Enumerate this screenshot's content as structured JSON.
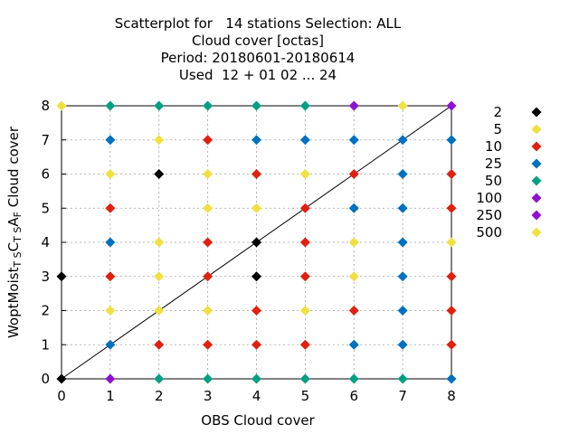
{
  "chart_data": {
    "type": "scatter",
    "title_lines": [
      "Scatterplot for   14 stations Selection: ALL",
      "Cloud cover [octas]",
      "Period: 20180601-20180614",
      "Used  12 + 01 02 ... 24"
    ],
    "xlabel": "OBS Cloud cover",
    "ylabel": {
      "parts": [
        {
          "text": "WoptMoist",
          "sub": false
        },
        {
          "text": "T S",
          "sub": true
        },
        {
          "text": "C",
          "sub": false
        },
        {
          "text": "T S",
          "sub": true
        },
        {
          "text": "A",
          "sub": false
        },
        {
          "text": "F",
          "sub": true
        },
        {
          "text": " Cloud cover",
          "sub": false
        }
      ]
    },
    "xlim": [
      0,
      8
    ],
    "ylim": [
      0,
      8
    ],
    "xticks": [
      "0",
      "1",
      "2",
      "3",
      "4",
      "5",
      "6",
      "7",
      "8"
    ],
    "yticks": [
      "0",
      "1",
      "2",
      "3",
      "4",
      "5",
      "6",
      "7",
      "8"
    ],
    "grid": true,
    "diagonal_line": true,
    "legend_position": "right",
    "legend": [
      {
        "label": "2",
        "color": "#000000"
      },
      {
        "label": "5",
        "color": "#f0e040"
      },
      {
        "label": "10",
        "color": "#e02010"
      },
      {
        "label": "25",
        "color": "#0070c0"
      },
      {
        "label": "50",
        "color": "#00a080"
      },
      {
        "label": "100",
        "color": "#9010d0"
      },
      {
        "label": "250",
        "color": "#9010d0"
      },
      {
        "label": "500",
        "color": "#f0e040"
      }
    ],
    "points": [
      {
        "x": 0,
        "y": 0,
        "color": "#000000"
      },
      {
        "x": 0,
        "y": 3,
        "color": "#000000"
      },
      {
        "x": 0,
        "y": 8,
        "color": "#f0e040"
      },
      {
        "x": 1,
        "y": 0,
        "color": "#9010d0"
      },
      {
        "x": 1,
        "y": 1,
        "color": "#0070c0"
      },
      {
        "x": 1,
        "y": 2,
        "color": "#f0e040"
      },
      {
        "x": 1,
        "y": 3,
        "color": "#e02010"
      },
      {
        "x": 1,
        "y": 4,
        "color": "#0070c0"
      },
      {
        "x": 1,
        "y": 5,
        "color": "#e02010"
      },
      {
        "x": 1,
        "y": 6,
        "color": "#f0e040"
      },
      {
        "x": 1,
        "y": 7,
        "color": "#0070c0"
      },
      {
        "x": 1,
        "y": 8,
        "color": "#00a080"
      },
      {
        "x": 2,
        "y": 0,
        "color": "#00a080"
      },
      {
        "x": 2,
        "y": 1,
        "color": "#e02010"
      },
      {
        "x": 2,
        "y": 2,
        "color": "#f0e040"
      },
      {
        "x": 2,
        "y": 3,
        "color": "#f0e040"
      },
      {
        "x": 2,
        "y": 4,
        "color": "#f0e040"
      },
      {
        "x": 2,
        "y": 6,
        "color": "#000000"
      },
      {
        "x": 2,
        "y": 7,
        "color": "#f0e040"
      },
      {
        "x": 2,
        "y": 8,
        "color": "#00a080"
      },
      {
        "x": 3,
        "y": 0,
        "color": "#00a080"
      },
      {
        "x": 3,
        "y": 1,
        "color": "#e02010"
      },
      {
        "x": 3,
        "y": 2,
        "color": "#f0e040"
      },
      {
        "x": 3,
        "y": 3,
        "color": "#e02010"
      },
      {
        "x": 3,
        "y": 4,
        "color": "#e02010"
      },
      {
        "x": 3,
        "y": 5,
        "color": "#f0e040"
      },
      {
        "x": 3,
        "y": 6,
        "color": "#f0e040"
      },
      {
        "x": 3,
        "y": 7,
        "color": "#e02010"
      },
      {
        "x": 3,
        "y": 8,
        "color": "#00a080"
      },
      {
        "x": 4,
        "y": 0,
        "color": "#00a080"
      },
      {
        "x": 4,
        "y": 1,
        "color": "#e02010"
      },
      {
        "x": 4,
        "y": 2,
        "color": "#e02010"
      },
      {
        "x": 4,
        "y": 3,
        "color": "#000000"
      },
      {
        "x": 4,
        "y": 4,
        "color": "#000000"
      },
      {
        "x": 4,
        "y": 5,
        "color": "#f0e040"
      },
      {
        "x": 4,
        "y": 6,
        "color": "#e02010"
      },
      {
        "x": 4,
        "y": 7,
        "color": "#0070c0"
      },
      {
        "x": 4,
        "y": 8,
        "color": "#00a080"
      },
      {
        "x": 5,
        "y": 0,
        "color": "#00a080"
      },
      {
        "x": 5,
        "y": 1,
        "color": "#e02010"
      },
      {
        "x": 5,
        "y": 2,
        "color": "#f0e040"
      },
      {
        "x": 5,
        "y": 3,
        "color": "#e02010"
      },
      {
        "x": 5,
        "y": 4,
        "color": "#e02010"
      },
      {
        "x": 5,
        "y": 5,
        "color": "#e02010"
      },
      {
        "x": 5,
        "y": 6,
        "color": "#f0e040"
      },
      {
        "x": 5,
        "y": 7,
        "color": "#0070c0"
      },
      {
        "x": 5,
        "y": 8,
        "color": "#00a080"
      },
      {
        "x": 6,
        "y": 0,
        "color": "#00a080"
      },
      {
        "x": 6,
        "y": 1,
        "color": "#0070c0"
      },
      {
        "x": 6,
        "y": 2,
        "color": "#e02010"
      },
      {
        "x": 6,
        "y": 3,
        "color": "#f0e040"
      },
      {
        "x": 6,
        "y": 4,
        "color": "#f0e040"
      },
      {
        "x": 6,
        "y": 5,
        "color": "#0070c0"
      },
      {
        "x": 6,
        "y": 6,
        "color": "#e02010"
      },
      {
        "x": 6,
        "y": 7,
        "color": "#0070c0"
      },
      {
        "x": 6,
        "y": 8,
        "color": "#9010d0"
      },
      {
        "x": 7,
        "y": 0,
        "color": "#00a080"
      },
      {
        "x": 7,
        "y": 1,
        "color": "#0070c0"
      },
      {
        "x": 7,
        "y": 2,
        "color": "#0070c0"
      },
      {
        "x": 7,
        "y": 3,
        "color": "#0070c0"
      },
      {
        "x": 7,
        "y": 4,
        "color": "#0070c0"
      },
      {
        "x": 7,
        "y": 5,
        "color": "#0070c0"
      },
      {
        "x": 7,
        "y": 6,
        "color": "#0070c0"
      },
      {
        "x": 7,
        "y": 7,
        "color": "#0070c0"
      },
      {
        "x": 7,
        "y": 8,
        "color": "#f0e040"
      },
      {
        "x": 8,
        "y": 0,
        "color": "#0070c0"
      },
      {
        "x": 8,
        "y": 1,
        "color": "#e02010"
      },
      {
        "x": 8,
        "y": 2,
        "color": "#e02010"
      },
      {
        "x": 8,
        "y": 3,
        "color": "#e02010"
      },
      {
        "x": 8,
        "y": 4,
        "color": "#f0e040"
      },
      {
        "x": 8,
        "y": 5,
        "color": "#e02010"
      },
      {
        "x": 8,
        "y": 6,
        "color": "#e02010"
      },
      {
        "x": 8,
        "y": 7,
        "color": "#0070c0"
      },
      {
        "x": 8,
        "y": 8,
        "color": "#9010d0"
      }
    ]
  }
}
